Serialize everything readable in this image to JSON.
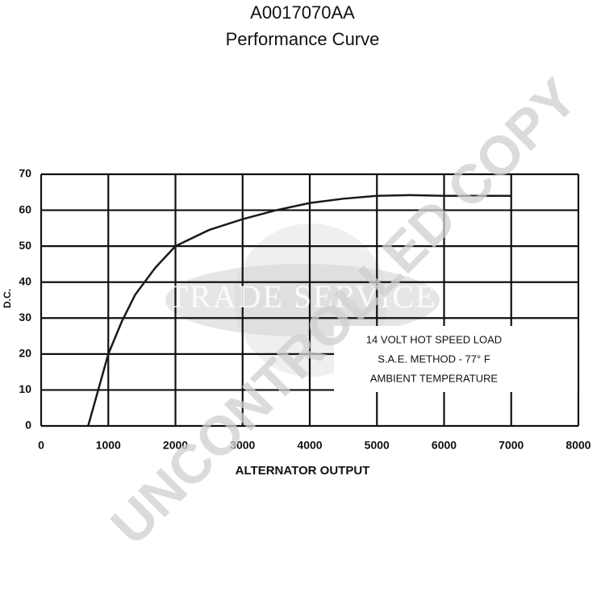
{
  "chart_data": {
    "type": "line",
    "title": "A0017070AA",
    "subtitle": "Performance Curve",
    "x_label": "ALTERNATOR OUTPUT",
    "y_label": "D.C.",
    "x": [
      700,
      850,
      1000,
      1200,
      1400,
      1700,
      2000,
      2500,
      3000,
      3500,
      4000,
      4500,
      5000,
      5500,
      6000,
      6500,
      7000
    ],
    "series": [
      {
        "color": "#1a1a1a",
        "values": [
          0,
          10,
          20,
          29,
          36.5,
          44,
          50,
          54.5,
          57.5,
          60,
          62,
          63.2,
          64,
          64.2,
          64,
          64,
          64
        ]
      }
    ],
    "xlim": [
      0,
      8000
    ],
    "ylim": [
      0,
      70
    ],
    "xticks": [
      0,
      1000,
      2000,
      3000,
      4000,
      5000,
      6000,
      7000,
      8000
    ],
    "yticks": [
      0,
      10,
      20,
      30,
      40,
      50,
      60,
      70
    ],
    "grid": true,
    "annotations": [
      "14 VOLT HOT SPEED LOAD",
      "S.A.E. METHOD - 77° F",
      "AMBIENT TEMPERATURE"
    ],
    "watermarks": [
      "TRADE SERVICE",
      "UNCONTROLLED COPY"
    ]
  }
}
